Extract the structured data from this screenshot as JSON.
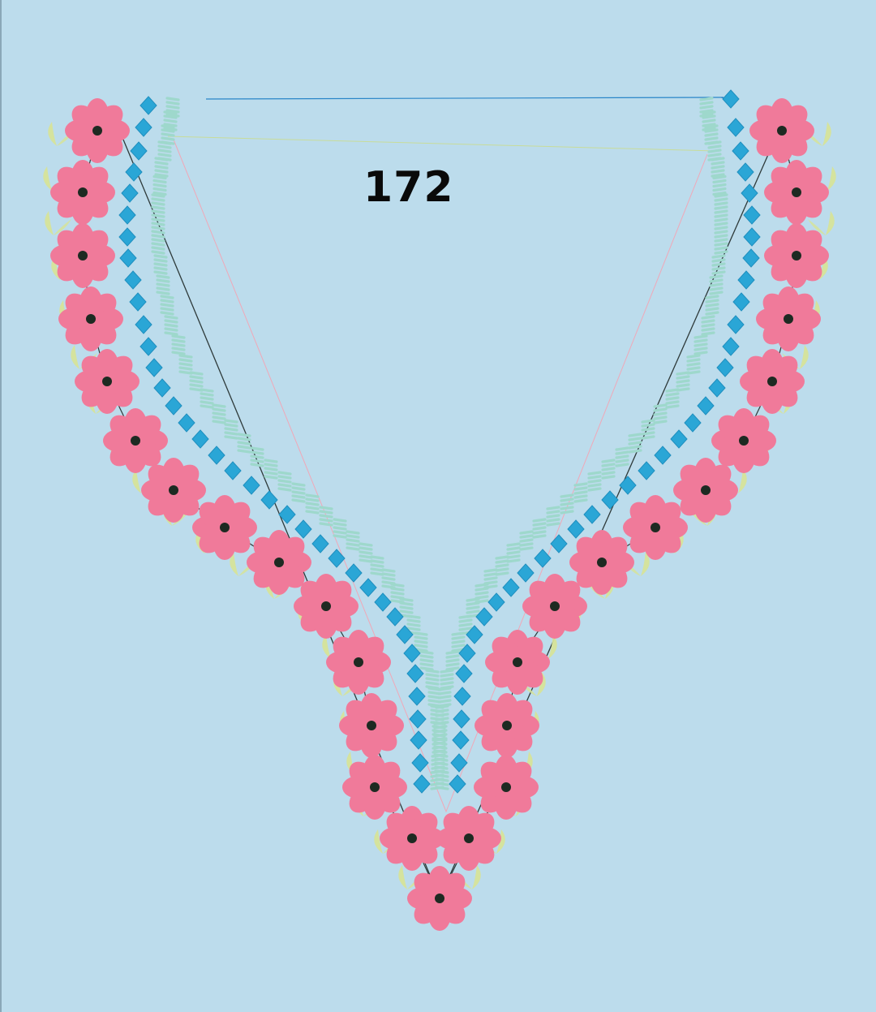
{
  "design": {
    "number": "172",
    "background_color": "#bcdcec",
    "colors": {
      "flower_petal": "#f07a9a",
      "flower_center": "#1e2a22",
      "diamond": "#2aa6d6",
      "fringe": "#9ed8cc",
      "leaf": "#d6e39a",
      "guide_dark": "#2e3a3a",
      "guide_pink": "#f0a8b8",
      "guide_green": "#c8dc9a",
      "guide_blue": "#2a86c8"
    }
  }
}
